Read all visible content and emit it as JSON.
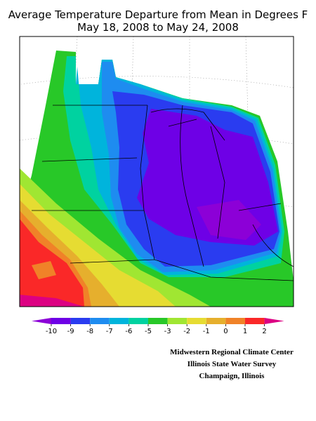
{
  "title": [
    "Average Temperature Departure from Mean in Degrees F",
    "May 18, 2008 to May 24, 2008"
  ],
  "legend": {
    "ticks": [
      -10,
      -9,
      -8,
      -7,
      -6,
      -5,
      -3,
      -2,
      -1,
      0,
      1,
      2
    ],
    "colors": [
      "#a000c8",
      "#8c00d7",
      "#6e00e6",
      "#2a3cf0",
      "#1e8cf0",
      "#00b4dc",
      "#00d2a0",
      "#28c828",
      "#a0e632",
      "#e6dc32",
      "#e6af2d",
      "#f08228",
      "#fa2828",
      "#dc0082"
    ]
  },
  "credits": [
    "Midwestern Regional Climate Center",
    "Illinois State Water Survey",
    "Champaign, Illinois"
  ]
}
